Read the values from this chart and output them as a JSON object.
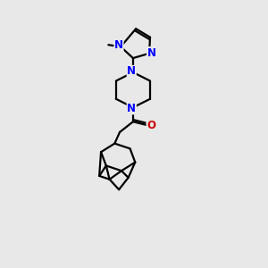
{
  "bg_color": "#e8e8e8",
  "bond_color": "#000000",
  "N_color": "#0000ff",
  "O_color": "#cc0000",
  "line_width": 1.6,
  "font_size": 8.5,
  "fig_size": [
    3.0,
    3.0
  ],
  "dpi": 100,
  "xlim": [
    0,
    10
  ],
  "ylim": [
    0,
    14
  ]
}
